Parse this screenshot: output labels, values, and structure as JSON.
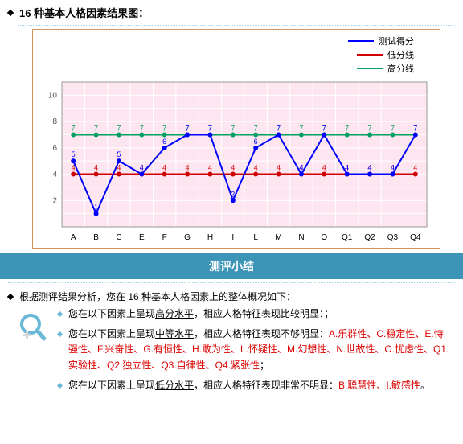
{
  "heading": "16 种基本人格因素结果图：",
  "chart": {
    "type": "line",
    "categories": [
      "A",
      "B",
      "C",
      "E",
      "F",
      "G",
      "H",
      "I",
      "L",
      "M",
      "N",
      "O",
      "Q1",
      "Q2",
      "Q3",
      "Q4"
    ],
    "series": {
      "score": {
        "label": "测试得分",
        "color": "#0000ff",
        "values": [
          5,
          1,
          5,
          4,
          6,
          7,
          7,
          2,
          6,
          7,
          4,
          7,
          4,
          4,
          4,
          7
        ]
      },
      "low": {
        "label": "低分线",
        "color": "#d00000",
        "values": [
          4,
          4,
          4,
          4,
          4,
          4,
          4,
          4,
          4,
          4,
          4,
          4,
          4,
          4,
          4,
          4
        ]
      },
      "high": {
        "label": "高分线",
        "color": "#00a060",
        "values": [
          7,
          7,
          7,
          7,
          7,
          7,
          7,
          7,
          7,
          7,
          7,
          7,
          7,
          7,
          7,
          7
        ]
      }
    },
    "ylim": [
      0,
      11
    ],
    "yticks": [
      2,
      4,
      6,
      8,
      10
    ],
    "plot_bg": "#fde6f0",
    "grid_color": "#ffffff",
    "border_color": "#d4915a",
    "axis_font": 10,
    "value_label_font": 9,
    "line_width": 2,
    "marker_size": 3
  },
  "summary_title": "测评小结",
  "intro_bullet": "根据测评结果分析，您在 16 种基本人格因素上的整体概况如下：",
  "bullets": {
    "b1_pre": "您在以下因素上呈现",
    "b1_level": "高分水平",
    "b1_post": "，相应人格特征表现比较明显：；",
    "b2_pre": "您在以下因素上呈现",
    "b2_level": "中等水平",
    "b2_post": "，相应人格特征表现不够明显：",
    "b2_factors": "A.乐群性、C.稳定性、E.恃强性、F.兴奋性、G.有恒性、H.敢为性、L.怀疑性、M.幻想性、N.世故性、O.忧虑性、Q1.实验性、Q2.独立性、Q3.自律性、Q4.紧张性",
    "b2_end": "；",
    "b3_pre": "您在以下因素上呈现",
    "b3_level": "低分水平",
    "b3_post": "，相应人格特征表现非常不明显：",
    "b3_factors": "B.聪慧性、I.敏感性",
    "b3_end": "。"
  }
}
